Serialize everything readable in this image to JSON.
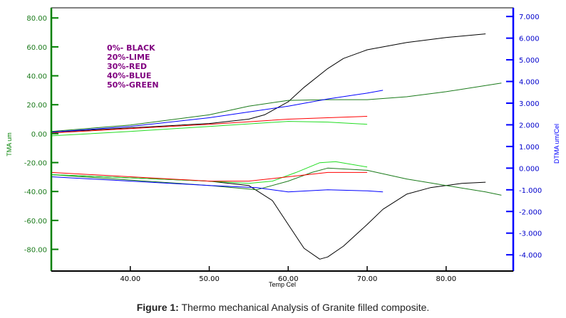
{
  "chart_data": {
    "type": "line",
    "xlabel": "Temp Cel",
    "ylabel_left": "TMA um",
    "ylabel_right": "DTMA um/Cel",
    "xlim": [
      30,
      88.5
    ],
    "ylim_left": [
      -95,
      87
    ],
    "ylim_right": [
      -4.75,
      7.4
    ],
    "x_ticks": [
      "40.00",
      "50.00",
      "60.00",
      "70.00",
      "80.00"
    ],
    "x_tick_values": [
      40,
      50,
      60,
      70,
      80
    ],
    "y_left_ticks": [
      "80.00",
      "60.00",
      "40.00",
      "20.00",
      "0.00",
      "-20.00",
      "-40.00",
      "-60.00",
      "-80.00"
    ],
    "y_left_values": [
      80,
      60,
      40,
      20,
      0,
      -20,
      -40,
      -60,
      -80
    ],
    "y_right_ticks": [
      "7.000",
      "6.000",
      "5.000",
      "4.000",
      "3.000",
      "2.000",
      "1.000",
      "0.000",
      "-1.000",
      "-2.000",
      "-3.000",
      "-4.000"
    ],
    "y_right_values": [
      7,
      6,
      5,
      4,
      3,
      2,
      1,
      0,
      -1,
      -2,
      -3,
      -4
    ],
    "legend": [
      "0%- BLACK",
      "20%-LIME",
      "30%-RED",
      "40%-BLUE",
      "50%-GREEN"
    ],
    "legend_placement": "top-left",
    "colors": {
      "black": "#000000",
      "lime": "#22dd22",
      "red": "#ff0000",
      "blue": "#0000ff",
      "green": "#1a7a1a",
      "legend_text": "#800080",
      "left_axis": "#008000",
      "right_axis": "#0000ff"
    },
    "series": [
      {
        "name": "0% TMA",
        "color": "black",
        "axis": "left",
        "x": [
          30,
          40,
          50,
          55,
          57,
          60,
          62,
          65,
          67,
          70,
          75,
          80,
          85
        ],
        "y": [
          1,
          4,
          7,
          10,
          13,
          22,
          32,
          45,
          52,
          58,
          63,
          66.5,
          69
        ]
      },
      {
        "name": "50% TMA",
        "color": "green",
        "axis": "left",
        "x": [
          30,
          40,
          50,
          55,
          60,
          65,
          70,
          75,
          80,
          87
        ],
        "y": [
          1.5,
          6,
          13,
          19,
          23,
          23.5,
          23.5,
          25.5,
          29,
          35
        ]
      },
      {
        "name": "40% TMA",
        "color": "blue",
        "axis": "left",
        "x": [
          30,
          40,
          50,
          55,
          60,
          65,
          70,
          72
        ],
        "y": [
          1,
          5,
          11,
          15,
          19,
          24,
          28,
          30
        ]
      },
      {
        "name": "30% TMA",
        "color": "red",
        "axis": "left",
        "x": [
          30,
          40,
          50,
          60,
          65,
          70
        ],
        "y": [
          0.5,
          3.5,
          6.5,
          10,
          11,
          12
        ]
      },
      {
        "name": "20% TMA",
        "color": "lime",
        "axis": "left",
        "x": [
          30,
          40,
          50,
          60,
          65,
          70
        ],
        "y": [
          -1.5,
          1.5,
          5,
          8.5,
          8,
          6.5
        ]
      },
      {
        "name": "0% DTMA",
        "color": "black",
        "axis": "right",
        "x": [
          30,
          50,
          55,
          58,
          60,
          62,
          64,
          65,
          67,
          70,
          72,
          75,
          78,
          82,
          85
        ],
        "y": [
          -0.3,
          -0.6,
          -0.8,
          -1.5,
          -2.6,
          -3.7,
          -4.2,
          -4.1,
          -3.6,
          -2.6,
          -1.9,
          -1.2,
          -0.9,
          -0.7,
          -0.65
        ]
      },
      {
        "name": "50% DTMA",
        "color": "green",
        "axis": "right",
        "x": [
          30,
          50,
          56,
          60,
          63,
          65,
          70,
          75,
          80,
          85,
          87
        ],
        "y": [
          -0.3,
          -0.8,
          -1.0,
          -0.6,
          -0.2,
          0.0,
          -0.1,
          -0.5,
          -0.8,
          -1.1,
          -1.25
        ]
      },
      {
        "name": "20% DTMA",
        "color": "lime",
        "axis": "right",
        "x": [
          30,
          50,
          55,
          58,
          61,
          64,
          66,
          70
        ],
        "y": [
          -0.3,
          -0.6,
          -0.7,
          -0.6,
          -0.2,
          0.25,
          0.3,
          0.05
        ]
      },
      {
        "name": "30% DTMA",
        "color": "red",
        "axis": "right",
        "x": [
          30,
          50,
          55,
          60,
          65,
          70
        ],
        "y": [
          -0.2,
          -0.6,
          -0.6,
          -0.4,
          -0.2,
          -0.2
        ]
      },
      {
        "name": "40% DTMA",
        "color": "blue",
        "axis": "right",
        "x": [
          30,
          50,
          56,
          60,
          65,
          70,
          72
        ],
        "y": [
          -0.4,
          -0.8,
          -0.9,
          -1.1,
          -1.0,
          -1.05,
          -1.1
        ]
      }
    ]
  },
  "caption": {
    "label": "Figure 1:",
    "text": " Thermo mechanical Analysis of Granite filled composite."
  }
}
